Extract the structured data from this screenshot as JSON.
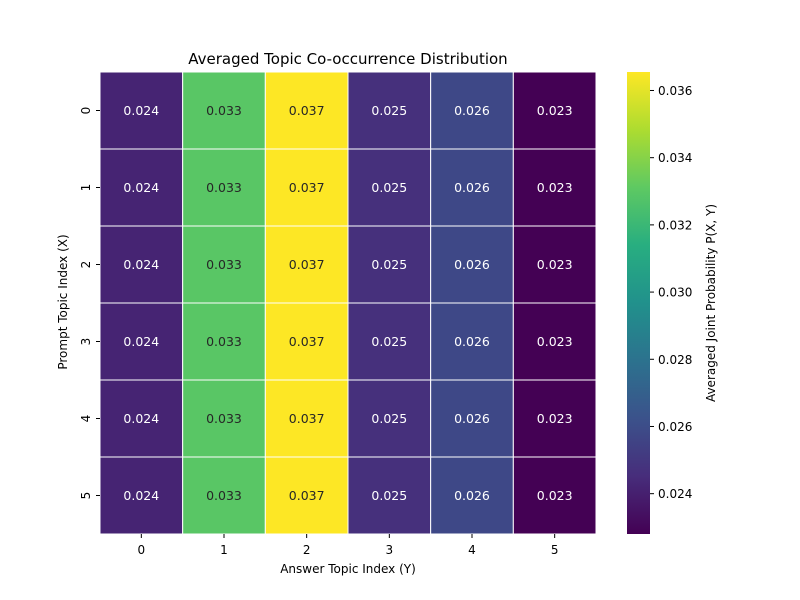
{
  "chart_data": {
    "type": "heatmap",
    "title": "Averaged Topic Co-occurrence Distribution",
    "xlabel": "Answer Topic Index (Y)",
    "ylabel": "Prompt Topic Index (X)",
    "x_categories": [
      "0",
      "1",
      "2",
      "3",
      "4",
      "5"
    ],
    "y_categories": [
      "0",
      "1",
      "2",
      "3",
      "4",
      "5"
    ],
    "values": [
      [
        0.0242,
        0.033,
        0.0366,
        0.0247,
        0.0258,
        0.0228
      ],
      [
        0.0242,
        0.033,
        0.0366,
        0.0247,
        0.0258,
        0.0228
      ],
      [
        0.0242,
        0.033,
        0.0366,
        0.0247,
        0.0258,
        0.0228
      ],
      [
        0.0242,
        0.033,
        0.0366,
        0.0247,
        0.0258,
        0.0228
      ],
      [
        0.0242,
        0.033,
        0.0366,
        0.0247,
        0.0258,
        0.0228
      ],
      [
        0.0242,
        0.033,
        0.0366,
        0.0247,
        0.0258,
        0.0228
      ]
    ],
    "annotations": [
      [
        "0.024",
        "0.033",
        "0.037",
        "0.025",
        "0.026",
        "0.023"
      ],
      [
        "0.024",
        "0.033",
        "0.037",
        "0.025",
        "0.026",
        "0.023"
      ],
      [
        "0.024",
        "0.033",
        "0.037",
        "0.025",
        "0.026",
        "0.023"
      ],
      [
        "0.024",
        "0.033",
        "0.037",
        "0.025",
        "0.026",
        "0.023"
      ],
      [
        "0.024",
        "0.033",
        "0.037",
        "0.025",
        "0.026",
        "0.023"
      ],
      [
        "0.024",
        "0.033",
        "0.037",
        "0.025",
        "0.026",
        "0.023"
      ]
    ],
    "colormap": "viridis",
    "color_range": [
      0.0228,
      0.03655
    ],
    "colorbar": {
      "label": "Averaged Joint Probability P(X, Y)",
      "ticks": [
        0.024,
        0.026,
        0.028,
        0.03,
        0.032,
        0.034,
        0.036
      ],
      "tick_labels": [
        "0.024",
        "0.026",
        "0.028",
        "0.030",
        "0.032",
        "0.034",
        "0.036"
      ]
    },
    "colors": {
      "cell_border": "#ffffff",
      "text_dark": "#262626",
      "text_light": "#ffffff"
    }
  }
}
